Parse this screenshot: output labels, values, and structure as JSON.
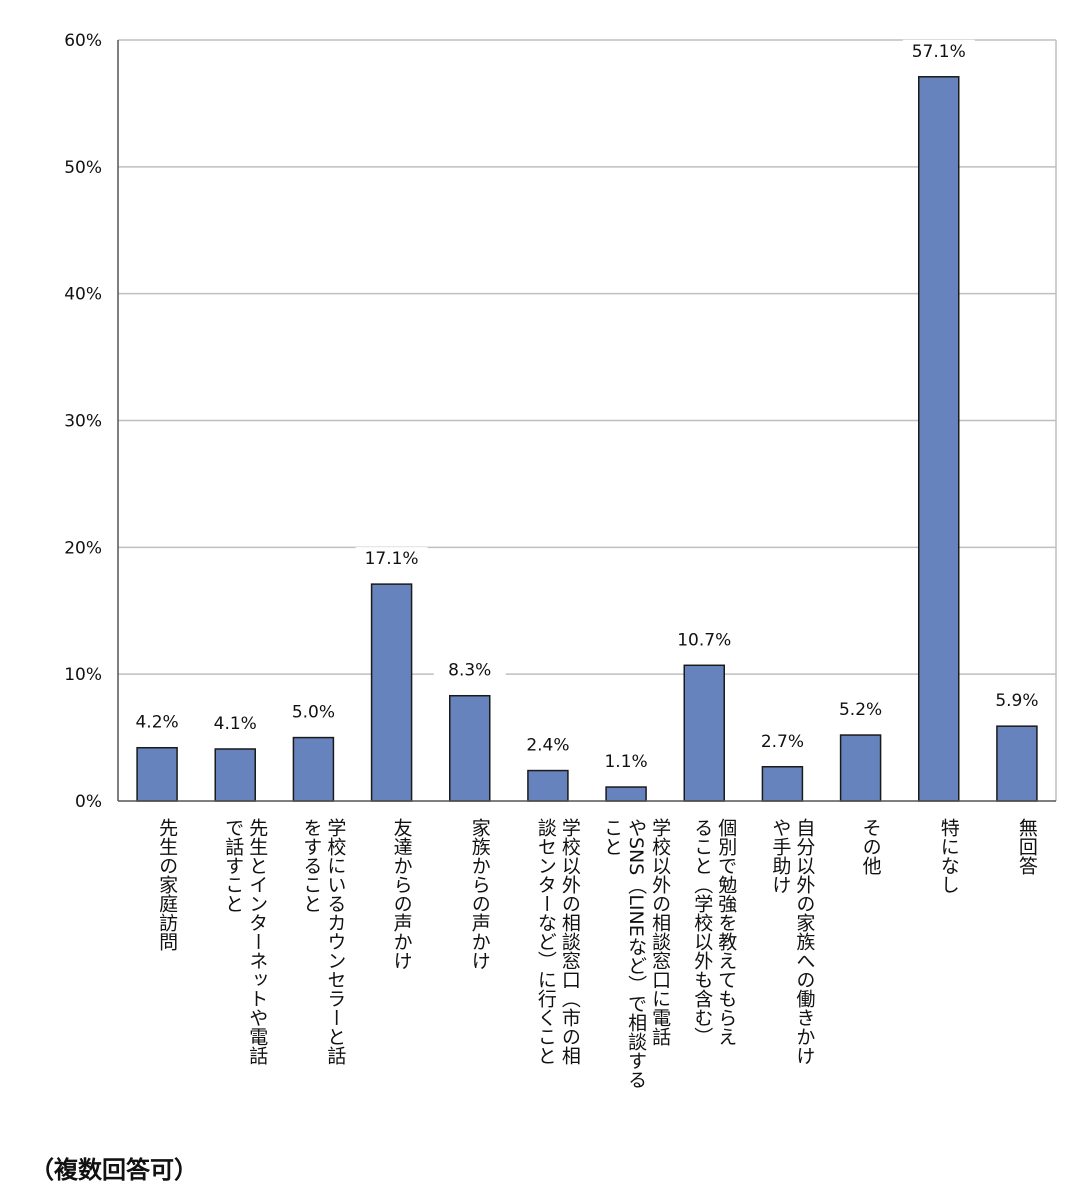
{
  "chart_data": {
    "type": "bar",
    "categories": [
      [
        "先生の家庭訪問"
      ],
      [
        "先生とインターネットや電話",
        "で話すこと"
      ],
      [
        "学校にいるカウンセラーと話",
        "をすること"
      ],
      [
        "友達からの声かけ"
      ],
      [
        "家族からの声かけ"
      ],
      [
        "学校以外の相談窓口（市の相",
        "談センターなど）に行くこと"
      ],
      [
        "学校以外の相談窓口に電話",
        "やSNS（LINEなど）で相談する",
        "こと"
      ],
      [
        "個別で勉強を教えてもらえ",
        "ること（学校以外も含む）"
      ],
      [
        "自分以外の家族への働きかけ",
        "や手助け"
      ],
      [
        "その他"
      ],
      [
        "特になし"
      ],
      [
        "無回答"
      ]
    ],
    "values": [
      4.2,
      4.1,
      5.0,
      17.1,
      8.3,
      2.4,
      1.1,
      10.7,
      2.7,
      5.2,
      57.1,
      5.9
    ],
    "value_labels": [
      "4.2%",
      "4.1%",
      "5.0%",
      "17.1%",
      "8.3%",
      "2.4%",
      "1.1%",
      "10.7%",
      "2.7%",
      "5.2%",
      "57.1%",
      "5.9%"
    ],
    "yticks": [
      0,
      10,
      20,
      30,
      40,
      50,
      60
    ],
    "ytick_labels": [
      "0%",
      "10%",
      "20%",
      "30%",
      "40%",
      "50%",
      "60%"
    ],
    "ylim": [
      0,
      60
    ],
    "grid": true,
    "bar_color": "#6783be",
    "bar_edge_color": "#1a1a1a",
    "grid_color": "#bfbfbf"
  },
  "note": "（複数回答可）"
}
